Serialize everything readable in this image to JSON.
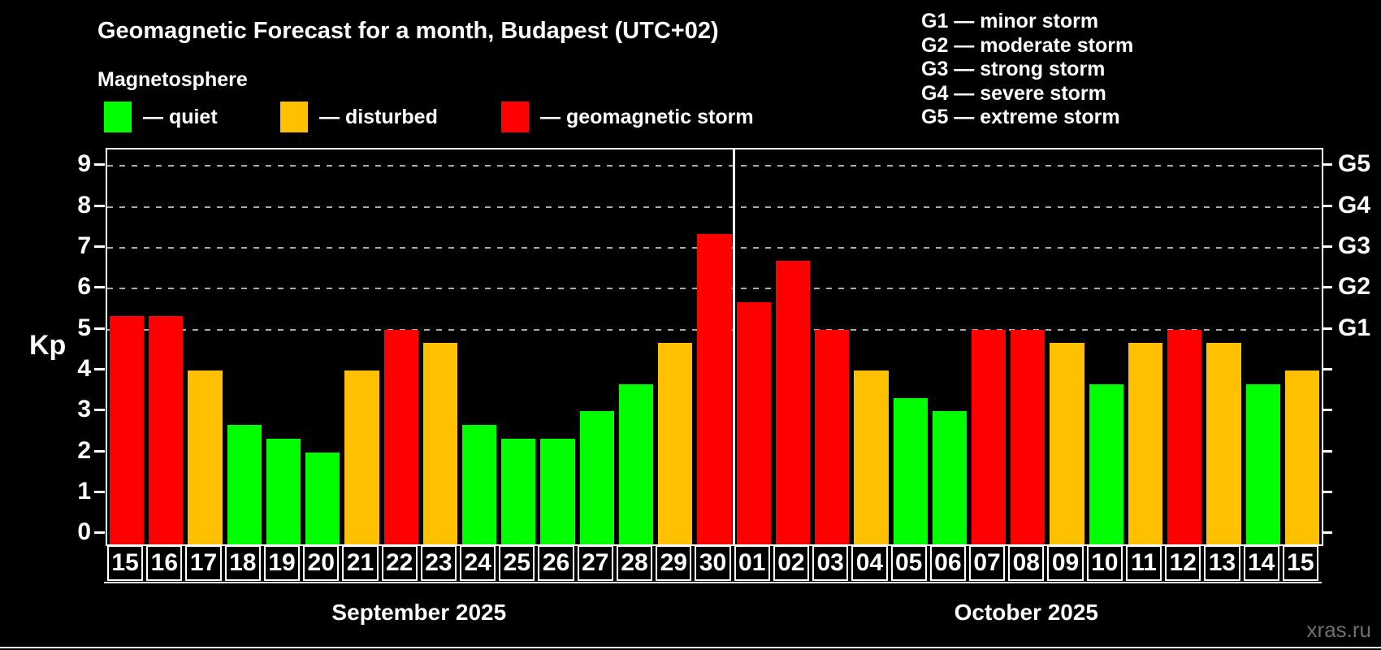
{
  "title": "Geomagnetic Forecast for a month, Budapest (UTC+02)",
  "subtitle": "Magnetosphere",
  "legend": {
    "items": [
      {
        "key": "quiet",
        "label": "— quiet",
        "color": "#00ff00"
      },
      {
        "key": "disturbed",
        "label": "— disturbed",
        "color": "#ffc000"
      },
      {
        "key": "storm",
        "label": "— geomagnetic storm",
        "color": "#ff0000"
      }
    ]
  },
  "g_scale_legend": [
    "G1 — minor storm",
    "G2 — moderate storm",
    "G3 — strong storm",
    "G4 — severe storm",
    "G5 — extreme storm"
  ],
  "watermark": "xras.ru",
  "chart_data": {
    "type": "bar",
    "title": "Geomagnetic Forecast for a month, Budapest (UTC+02)",
    "xlabel": "",
    "ylabel": "Kp",
    "ylim": [
      0,
      9
    ],
    "yticks": [
      0,
      1,
      2,
      3,
      4,
      5,
      6,
      7,
      8,
      9
    ],
    "grid_levels": [
      5,
      6,
      7,
      8,
      9
    ],
    "grid_on": true,
    "grid_color": "#ababab",
    "right_axis": [
      {
        "value": 5,
        "label": "G1"
      },
      {
        "value": 6,
        "label": "G2"
      },
      {
        "value": 7,
        "label": "G3"
      },
      {
        "value": 8,
        "label": "G4"
      },
      {
        "value": 9,
        "label": "G5"
      }
    ],
    "months": [
      {
        "label": "September 2025",
        "days": 16
      },
      {
        "label": "October 2025",
        "days": 15
      }
    ],
    "categories": [
      "15",
      "16",
      "17",
      "18",
      "19",
      "20",
      "21",
      "22",
      "23",
      "24",
      "25",
      "26",
      "27",
      "28",
      "29",
      "30",
      "01",
      "02",
      "03",
      "04",
      "05",
      "06",
      "07",
      "08",
      "09",
      "10",
      "11",
      "12",
      "13",
      "14",
      "15"
    ],
    "values": [
      5.33,
      5.33,
      4.0,
      2.67,
      2.33,
      2.0,
      4.0,
      5.0,
      4.67,
      2.67,
      2.33,
      2.33,
      3.0,
      3.67,
      4.67,
      7.33,
      5.67,
      6.67,
      5.0,
      4.0,
      3.33,
      3.0,
      5.0,
      5.0,
      4.67,
      3.67,
      4.67,
      5.0,
      4.67,
      3.67,
      4.0
    ],
    "statuses": [
      "storm",
      "storm",
      "disturbed",
      "quiet",
      "quiet",
      "quiet",
      "disturbed",
      "storm",
      "disturbed",
      "quiet",
      "quiet",
      "quiet",
      "quiet",
      "quiet",
      "disturbed",
      "storm",
      "storm",
      "storm",
      "storm",
      "disturbed",
      "quiet",
      "quiet",
      "storm",
      "storm",
      "disturbed",
      "quiet",
      "disturbed",
      "storm",
      "disturbed",
      "quiet",
      "disturbed"
    ],
    "colors": {
      "quiet": "#00ff00",
      "disturbed": "#ffc000",
      "storm": "#ff0000"
    }
  }
}
